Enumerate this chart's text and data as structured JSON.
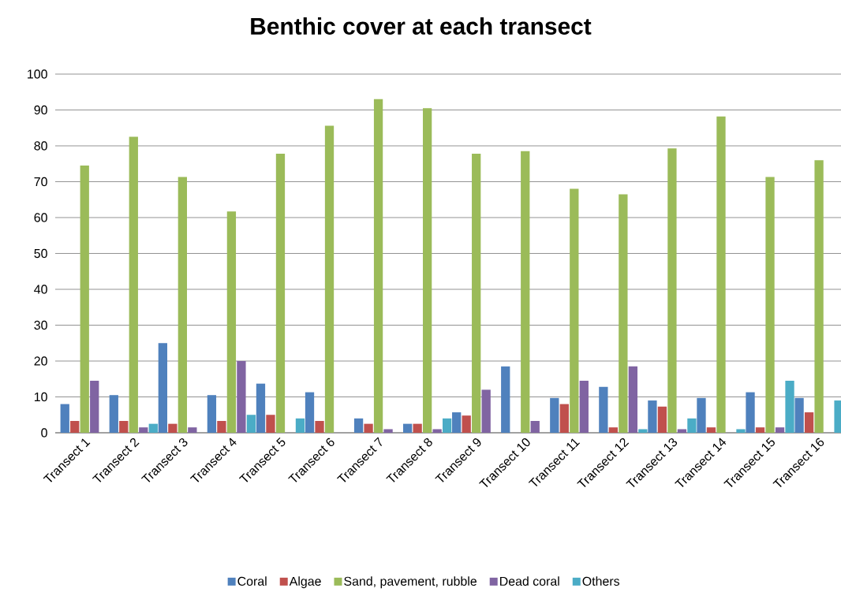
{
  "chart_data": {
    "type": "bar",
    "title": "Benthic cover at each transect",
    "categories": [
      "Transect 1",
      "Transect 2",
      "Transect 3",
      "Transect 4",
      "Transect 5",
      "Transect 6",
      "Transect 7",
      "Transect 8",
      "Transect 9",
      "Transect 10",
      "Transect 11",
      "Transect 12",
      "Transect 13",
      "Transect 14",
      "Transect 15",
      "Transect 16"
    ],
    "series": [
      {
        "name": "Coral",
        "color": "#4f81bd",
        "values": [
          8,
          10.5,
          25,
          10.5,
          13.7,
          11.3,
          4,
          2.5,
          5.7,
          18.5,
          9.7,
          12.8,
          9,
          9.7,
          11.3,
          9.7
        ]
      },
      {
        "name": "Algae",
        "color": "#c0504d",
        "values": [
          3.3,
          3.3,
          2.5,
          3.3,
          5,
          3.3,
          2.5,
          2.5,
          4.8,
          0,
          8,
          1.5,
          7.3,
          1.5,
          1.5,
          5.7
        ]
      },
      {
        "name": "Sand, pavement, rubble",
        "color": "#9bbb59",
        "values": [
          74.5,
          82.5,
          71.3,
          61.7,
          77.8,
          85.6,
          93,
          90.5,
          77.8,
          78.5,
          68,
          66.5,
          79.3,
          88.2,
          71.3,
          76
        ]
      },
      {
        "name": "Dead coral",
        "color": "#8064a2",
        "values": [
          14.5,
          1.5,
          1.5,
          20,
          0,
          0,
          1,
          1,
          12,
          3.3,
          14.5,
          18.5,
          1,
          0,
          1.5,
          0
        ]
      },
      {
        "name": "Others",
        "color": "#4bacc6",
        "values": [
          0,
          2.5,
          0,
          5,
          4,
          0,
          0,
          4,
          0,
          0,
          0,
          1,
          4,
          1,
          14.5,
          9
        ]
      }
    ],
    "ylim": [
      0,
      100
    ],
    "yticks": [
      0,
      10,
      20,
      30,
      40,
      50,
      60,
      70,
      80,
      90,
      100
    ],
    "grid": "y",
    "legend": "bottom"
  }
}
